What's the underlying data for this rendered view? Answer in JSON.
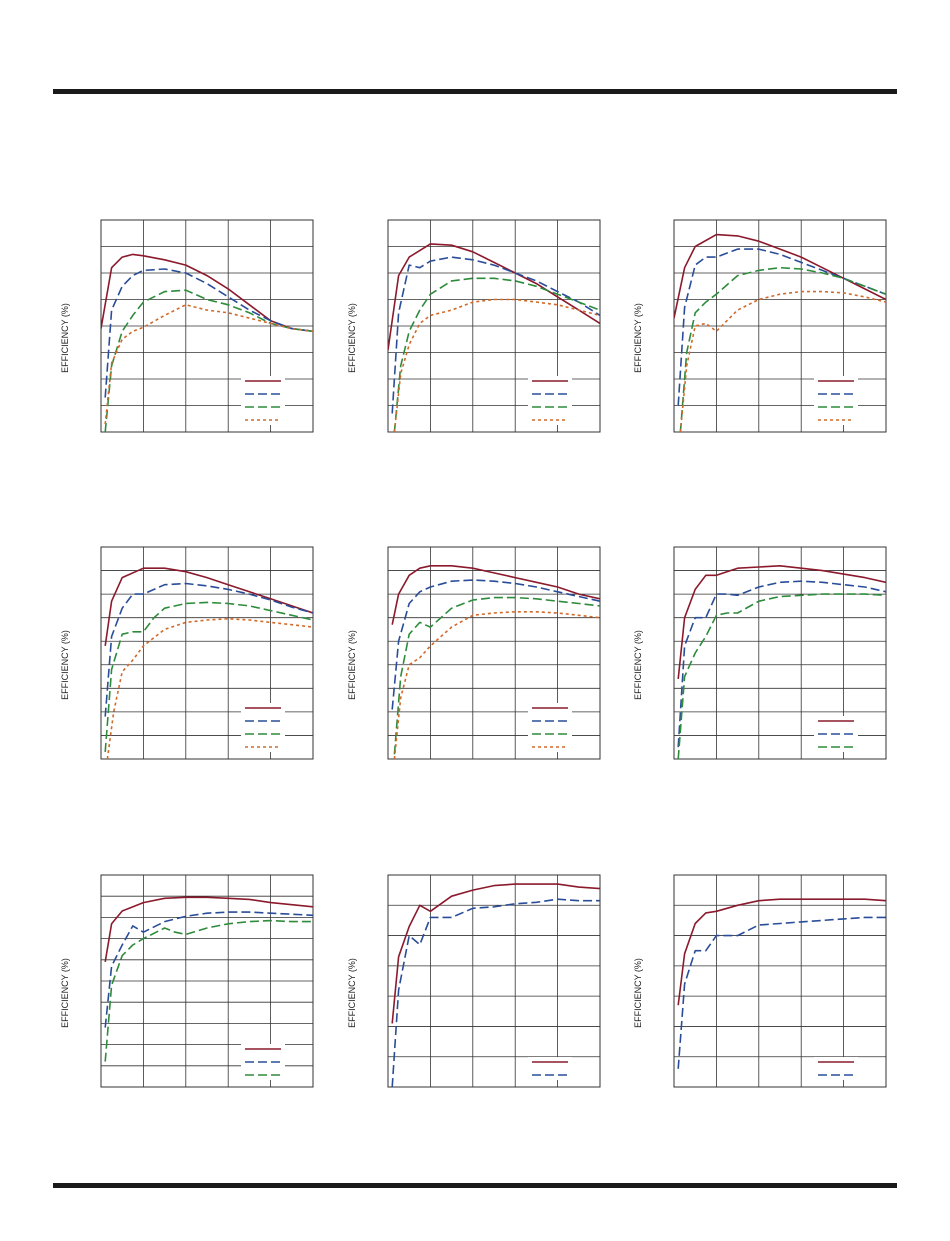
{
  "y_axis_label": "EFFICIENCY (%)",
  "colors": {
    "series_1": "#8b1a2c",
    "series_2": "#2a4d9a",
    "series_3": "#2e8b3c",
    "series_4": "#d06a2a",
    "grid": "#333333"
  },
  "chart_data": [
    {
      "type": "line",
      "grid": true,
      "legend_position": "bottom-right",
      "ylabel": "EFFICIENCY (%)",
      "x_range": [
        0,
        100
      ],
      "y_range": [
        0,
        8
      ],
      "series": [
        {
          "style": "solid",
          "x": [
            0,
            5,
            10,
            15,
            20,
            30,
            40,
            50,
            60,
            70,
            80,
            90,
            100
          ],
          "y": [
            3.9,
            6.2,
            6.6,
            6.7,
            6.65,
            6.5,
            6.3,
            5.9,
            5.4,
            4.8,
            4.2,
            3.9,
            3.8
          ]
        },
        {
          "style": "dashed",
          "x": [
            2,
            5,
            10,
            15,
            20,
            30,
            40,
            50,
            60,
            70,
            80,
            90,
            100
          ],
          "y": [
            1.3,
            4.6,
            5.5,
            5.9,
            6.1,
            6.15,
            6.0,
            5.6,
            5.1,
            4.6,
            4.2,
            3.9,
            3.8
          ]
        },
        {
          "style": "dashed",
          "x": [
            2,
            5,
            10,
            15,
            20,
            30,
            40,
            50,
            60,
            70,
            80,
            90,
            100
          ],
          "y": [
            0.0,
            2.5,
            3.8,
            4.4,
            4.9,
            5.3,
            5.35,
            5.0,
            4.8,
            4.5,
            4.1,
            3.9,
            3.8
          ]
        },
        {
          "style": "dotted",
          "x": [
            2,
            5,
            10,
            15,
            20,
            30,
            40,
            50,
            60,
            70,
            80,
            90,
            100
          ],
          "y": [
            0.3,
            2.6,
            3.5,
            3.8,
            3.95,
            4.4,
            4.8,
            4.6,
            4.5,
            4.3,
            4.1,
            3.9,
            3.8
          ]
        }
      ]
    },
    {
      "type": "line",
      "grid": true,
      "legend_position": "bottom-right",
      "ylabel": "EFFICIENCY (%)",
      "x_range": [
        0,
        100
      ],
      "y_range": [
        0,
        8
      ],
      "series": [
        {
          "style": "solid",
          "x": [
            0,
            5,
            10,
            20,
            30,
            40,
            50,
            60,
            70,
            80,
            90,
            100
          ],
          "y": [
            3.1,
            5.9,
            6.6,
            7.1,
            7.05,
            6.8,
            6.4,
            6.0,
            5.6,
            5.1,
            4.6,
            4.1
          ]
        },
        {
          "style": "dashed",
          "x": [
            2,
            5,
            10,
            15,
            20,
            30,
            40,
            50,
            60,
            70,
            80,
            90,
            100
          ],
          "y": [
            0.7,
            4.5,
            6.3,
            6.2,
            6.45,
            6.6,
            6.5,
            6.3,
            6.0,
            5.7,
            5.3,
            4.9,
            4.4
          ]
        },
        {
          "style": "dashed",
          "x": [
            3,
            6,
            10,
            15,
            20,
            30,
            40,
            50,
            60,
            70,
            80,
            90,
            100
          ],
          "y": [
            0.0,
            2.5,
            3.8,
            4.6,
            5.2,
            5.7,
            5.8,
            5.8,
            5.7,
            5.5,
            5.2,
            4.9,
            4.6
          ]
        },
        {
          "style": "dotted",
          "x": [
            3,
            6,
            10,
            15,
            20,
            30,
            40,
            50,
            60,
            70,
            80,
            90,
            100
          ],
          "y": [
            0.0,
            2.2,
            3.3,
            4.1,
            4.4,
            4.6,
            4.9,
            5.0,
            5.0,
            4.9,
            4.8,
            4.6,
            4.4
          ]
        }
      ]
    },
    {
      "type": "line",
      "grid": true,
      "legend_position": "bottom-right",
      "ylabel": "EFFICIENCY (%)",
      "x_range": [
        0,
        100
      ],
      "y_range": [
        0,
        8
      ],
      "series": [
        {
          "style": "solid",
          "x": [
            0,
            5,
            10,
            20,
            30,
            40,
            50,
            60,
            70,
            80,
            90,
            100
          ],
          "y": [
            4.3,
            6.2,
            7.0,
            7.45,
            7.4,
            7.2,
            6.9,
            6.6,
            6.2,
            5.8,
            5.4,
            5.0
          ]
        },
        {
          "style": "dashed",
          "x": [
            2,
            5,
            10,
            15,
            20,
            30,
            40,
            50,
            60,
            70,
            80,
            90,
            100
          ],
          "y": [
            1.0,
            4.7,
            6.3,
            6.6,
            6.6,
            6.9,
            6.9,
            6.7,
            6.4,
            6.1,
            5.8,
            5.5,
            5.2
          ]
        },
        {
          "style": "dashed",
          "x": [
            3,
            6,
            10,
            15,
            20,
            30,
            40,
            50,
            60,
            70,
            80,
            90,
            100
          ],
          "y": [
            0.0,
            3.0,
            4.5,
            4.9,
            5.2,
            5.9,
            6.1,
            6.2,
            6.15,
            6.0,
            5.8,
            5.5,
            5.2
          ]
        },
        {
          "style": "dotted",
          "x": [
            3,
            6,
            10,
            15,
            20,
            30,
            40,
            50,
            60,
            70,
            80,
            90,
            100
          ],
          "y": [
            0.0,
            2.5,
            4.0,
            4.1,
            3.8,
            4.6,
            5.0,
            5.2,
            5.3,
            5.3,
            5.25,
            5.1,
            4.9
          ]
        }
      ]
    },
    {
      "type": "line",
      "grid": true,
      "legend_position": "bottom-right",
      "ylabel": "EFFICIENCY (%)",
      "x_range": [
        0,
        100
      ],
      "y_range": [
        0,
        9
      ],
      "series": [
        {
          "style": "solid",
          "x": [
            2,
            5,
            10,
            20,
            30,
            40,
            50,
            60,
            70,
            80,
            90,
            100
          ],
          "y": [
            4.8,
            6.7,
            7.7,
            8.1,
            8.1,
            7.95,
            7.7,
            7.4,
            7.1,
            6.8,
            6.5,
            6.2
          ]
        },
        {
          "style": "dashed",
          "x": [
            2,
            5,
            10,
            15,
            20,
            30,
            40,
            50,
            60,
            70,
            80,
            90,
            100
          ],
          "y": [
            1.8,
            5.2,
            6.4,
            7.0,
            7.0,
            7.4,
            7.45,
            7.35,
            7.2,
            7.0,
            6.75,
            6.45,
            6.2
          ]
        },
        {
          "style": "dashed",
          "x": [
            2,
            5,
            10,
            15,
            20,
            25,
            30,
            40,
            50,
            60,
            70,
            80,
            90,
            100
          ],
          "y": [
            0.3,
            3.8,
            5.3,
            5.4,
            5.4,
            6.0,
            6.4,
            6.6,
            6.65,
            6.6,
            6.5,
            6.3,
            6.1,
            5.9
          ]
        },
        {
          "style": "dotted",
          "x": [
            3,
            6,
            10,
            15,
            20,
            30,
            40,
            50,
            60,
            70,
            80,
            90,
            100
          ],
          "y": [
            0.0,
            2.0,
            3.7,
            4.2,
            4.8,
            5.5,
            5.8,
            5.9,
            5.95,
            5.9,
            5.8,
            5.7,
            5.6
          ]
        }
      ]
    },
    {
      "type": "line",
      "grid": true,
      "legend_position": "bottom-right",
      "ylabel": "EFFICIENCY (%)",
      "x_range": [
        0,
        100
      ],
      "y_range": [
        0,
        9
      ],
      "series": [
        {
          "style": "solid",
          "x": [
            2,
            5,
            10,
            15,
            20,
            30,
            40,
            50,
            60,
            70,
            80,
            90,
            100
          ],
          "y": [
            5.7,
            7.0,
            7.8,
            8.1,
            8.2,
            8.2,
            8.1,
            7.9,
            7.7,
            7.5,
            7.3,
            7.0,
            6.8
          ]
        },
        {
          "style": "dashed",
          "x": [
            2,
            5,
            10,
            15,
            20,
            30,
            40,
            50,
            60,
            70,
            80,
            90,
            100
          ],
          "y": [
            2.1,
            5.0,
            6.6,
            7.1,
            7.3,
            7.55,
            7.6,
            7.55,
            7.45,
            7.3,
            7.1,
            6.9,
            6.7
          ]
        },
        {
          "style": "dashed",
          "x": [
            3,
            6,
            10,
            15,
            20,
            30,
            40,
            50,
            60,
            70,
            80,
            90,
            100
          ],
          "y": [
            0.2,
            3.5,
            5.3,
            5.8,
            5.6,
            6.4,
            6.75,
            6.85,
            6.85,
            6.8,
            6.7,
            6.6,
            6.5
          ]
        },
        {
          "style": "dotted",
          "x": [
            3,
            6,
            10,
            15,
            20,
            30,
            40,
            50,
            60,
            70,
            80,
            90,
            100
          ],
          "y": [
            0.0,
            2.6,
            4.0,
            4.3,
            4.8,
            5.6,
            6.1,
            6.2,
            6.25,
            6.25,
            6.2,
            6.1,
            6.0
          ]
        }
      ]
    },
    {
      "type": "line",
      "grid": true,
      "legend_position": "bottom-right",
      "ylabel": "EFFICIENCY (%)",
      "x_range": [
        0,
        100
      ],
      "y_range": [
        0,
        9
      ],
      "series": [
        {
          "style": "solid",
          "x": [
            2,
            5,
            10,
            15,
            20,
            30,
            40,
            50,
            60,
            70,
            80,
            90,
            100
          ],
          "y": [
            3.4,
            6.0,
            7.2,
            7.8,
            7.8,
            8.1,
            8.15,
            8.2,
            8.1,
            8.0,
            7.85,
            7.7,
            7.5
          ]
        },
        {
          "style": "dashed",
          "x": [
            2,
            5,
            10,
            15,
            20,
            25,
            30,
            40,
            50,
            60,
            70,
            80,
            90,
            100
          ],
          "y": [
            0.5,
            4.8,
            6.0,
            6.0,
            7.0,
            7.0,
            6.95,
            7.3,
            7.5,
            7.55,
            7.5,
            7.4,
            7.3,
            7.1
          ]
        },
        {
          "style": "dashed",
          "x": [
            2,
            5,
            10,
            15,
            20,
            25,
            30,
            40,
            50,
            60,
            70,
            80,
            90,
            100
          ],
          "y": [
            0.0,
            3.5,
            4.5,
            5.2,
            6.1,
            6.2,
            6.2,
            6.7,
            6.9,
            6.95,
            7.0,
            7.0,
            7.0,
            6.95
          ]
        }
      ]
    },
    {
      "type": "line",
      "grid": true,
      "legend_position": "bottom-right",
      "ylabel": "EFFICIENCY (%)",
      "x_range": [
        0,
        100
      ],
      "y_range": [
        0,
        10
      ],
      "series": [
        {
          "style": "solid",
          "x": [
            2,
            5,
            10,
            20,
            30,
            40,
            50,
            60,
            70,
            80,
            90,
            100
          ],
          "y": [
            5.9,
            7.7,
            8.3,
            8.7,
            8.9,
            8.95,
            8.95,
            8.9,
            8.85,
            8.7,
            8.6,
            8.5
          ]
        },
        {
          "style": "dashed",
          "x": [
            2,
            5,
            10,
            15,
            20,
            30,
            40,
            50,
            60,
            70,
            80,
            90,
            100
          ],
          "y": [
            2.8,
            5.7,
            6.7,
            7.6,
            7.3,
            7.8,
            8.05,
            8.2,
            8.25,
            8.25,
            8.2,
            8.15,
            8.1
          ]
        },
        {
          "style": "dashed",
          "x": [
            2,
            5,
            10,
            15,
            20,
            30,
            35,
            40,
            50,
            60,
            70,
            80,
            90,
            100
          ],
          "y": [
            1.2,
            4.8,
            6.2,
            6.7,
            7.0,
            7.5,
            7.3,
            7.2,
            7.5,
            7.7,
            7.8,
            7.85,
            7.8,
            7.8
          ]
        }
      ]
    },
    {
      "type": "line",
      "grid": true,
      "legend_position": "bottom-right",
      "ylabel": "EFFICIENCY (%)",
      "x_range": [
        0,
        100
      ],
      "y_range": [
        0,
        7
      ],
      "series": [
        {
          "style": "solid",
          "x": [
            2,
            5,
            10,
            15,
            20,
            30,
            40,
            50,
            60,
            70,
            80,
            90,
            100
          ],
          "y": [
            2.1,
            4.3,
            5.3,
            6.0,
            5.8,
            6.3,
            6.5,
            6.65,
            6.7,
            6.7,
            6.7,
            6.6,
            6.55
          ]
        },
        {
          "style": "dashed",
          "x": [
            2,
            5,
            10,
            15,
            20,
            30,
            40,
            50,
            60,
            70,
            80,
            90,
            100
          ],
          "y": [
            0.0,
            3.2,
            5.0,
            4.7,
            5.6,
            5.6,
            5.9,
            5.95,
            6.05,
            6.1,
            6.2,
            6.15,
            6.15
          ]
        }
      ]
    },
    {
      "type": "line",
      "grid": true,
      "legend_position": "bottom-right",
      "ylabel": "EFFICIENCY (%)",
      "x_range": [
        0,
        100
      ],
      "y_range": [
        0,
        7
      ],
      "series": [
        {
          "style": "solid",
          "x": [
            2,
            5,
            10,
            15,
            20,
            30,
            40,
            50,
            60,
            70,
            80,
            90,
            100
          ],
          "y": [
            2.7,
            4.4,
            5.4,
            5.75,
            5.8,
            6.0,
            6.15,
            6.2,
            6.2,
            6.2,
            6.2,
            6.2,
            6.15
          ]
        },
        {
          "style": "dashed",
          "x": [
            2,
            5,
            10,
            15,
            20,
            30,
            40,
            50,
            60,
            70,
            80,
            90,
            100
          ],
          "y": [
            0.6,
            3.4,
            4.5,
            4.5,
            5.0,
            5.0,
            5.35,
            5.4,
            5.45,
            5.5,
            5.55,
            5.6,
            5.6
          ]
        }
      ]
    }
  ]
}
